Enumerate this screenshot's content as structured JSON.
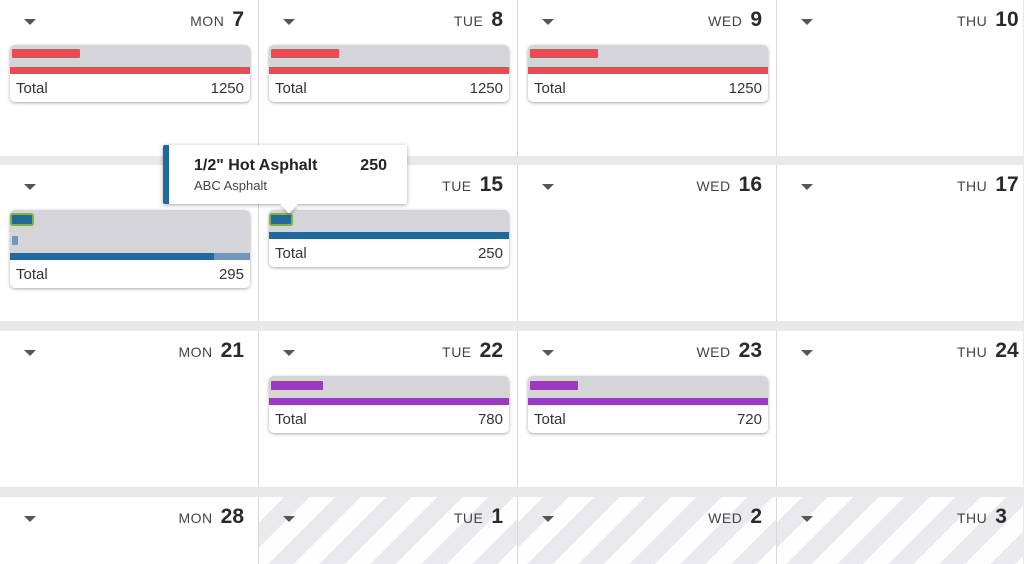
{
  "weeks": [
    {
      "days": [
        {
          "dow": "MON",
          "num": "7",
          "total_label": "Total",
          "total": "1250"
        },
        {
          "dow": "TUE",
          "num": "8",
          "total_label": "Total",
          "total": "1250"
        },
        {
          "dow": "WED",
          "num": "9",
          "total_label": "Total",
          "total": "1250"
        },
        {
          "dow": "THU",
          "num": "10"
        }
      ]
    },
    {
      "days": [
        {
          "dow": "",
          "num": "",
          "total_label": "Total",
          "total": "295"
        },
        {
          "dow": "TUE",
          "num": "15",
          "total_label": "Total",
          "total": "250"
        },
        {
          "dow": "WED",
          "num": "16"
        },
        {
          "dow": "THU",
          "num": "17"
        }
      ]
    },
    {
      "days": [
        {
          "dow": "MON",
          "num": "21"
        },
        {
          "dow": "TUE",
          "num": "22",
          "total_label": "Total",
          "total": "780"
        },
        {
          "dow": "WED",
          "num": "23",
          "total_label": "Total",
          "total": "720"
        },
        {
          "dow": "THU",
          "num": "24"
        }
      ]
    },
    {
      "days": [
        {
          "dow": "MON",
          "num": "28"
        },
        {
          "dow": "TUE",
          "num": "1"
        },
        {
          "dow": "WED",
          "num": "2"
        },
        {
          "dow": "THU",
          "num": "3"
        }
      ]
    }
  ],
  "tooltip": {
    "name": "1/2\" Hot Asphalt",
    "qty": "250",
    "supplier": "ABC Asphalt"
  },
  "colors": {
    "red": "#ea4a55",
    "blue": "#22689c",
    "blue_light": "#6e97bd",
    "purple": "#9a3bbd",
    "highlight": "#7cb342"
  },
  "icons": {
    "day_menu": "caret-down-icon"
  }
}
